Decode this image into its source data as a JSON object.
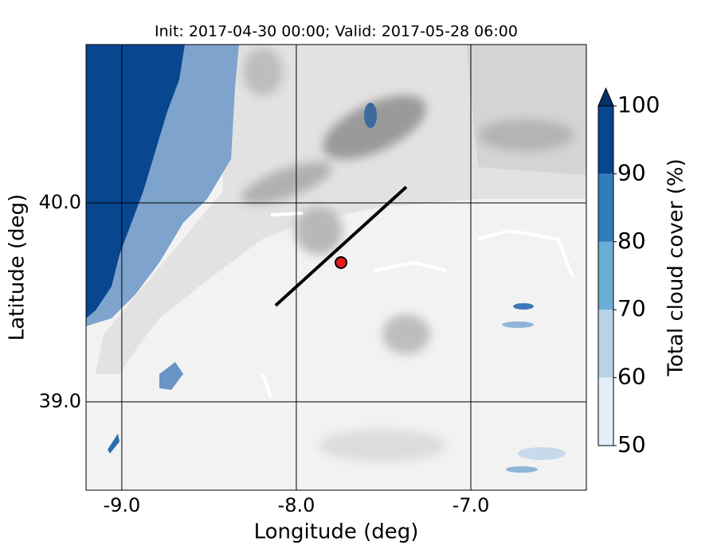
{
  "chart_data": {
    "type": "map",
    "title": "Init: 2017-04-30 00:00; Valid: 2017-05-28 06:00",
    "xlabel": "Longitude (deg)",
    "ylabel": "Latitude (deg)",
    "xlim": [
      -9.205,
      -6.338
    ],
    "xticks": [
      {
        "value": -9,
        "label": "-9.0"
      },
      {
        "value": -8,
        "label": "-8.0"
      },
      {
        "value": -7,
        "label": "-7.0"
      }
    ],
    "ylim": [
      38.556,
      40.796
    ],
    "yticks": [
      {
        "value": 39,
        "label": "39.0"
      },
      {
        "value": 40,
        "label": "40.0"
      }
    ],
    "grid": true,
    "transect": {
      "lon": [
        -8.119,
        -7.37
      ],
      "lat": [
        39.484,
        40.08
      ],
      "color": "#000000"
    },
    "point": {
      "lon": -7.744,
      "lat": 39.7,
      "color": "#e41a1c"
    },
    "colorbar": {
      "label": "Total cloud cover (%)",
      "lim": [
        50,
        100
      ],
      "ticks": [
        50,
        60,
        70,
        80,
        90,
        100
      ],
      "colors": [
        "#e3eef8",
        "#b6d3e9",
        "#6aaed6",
        "#2e7ebc",
        "#08468f"
      ],
      "extend_color": "#08306b"
    }
  }
}
